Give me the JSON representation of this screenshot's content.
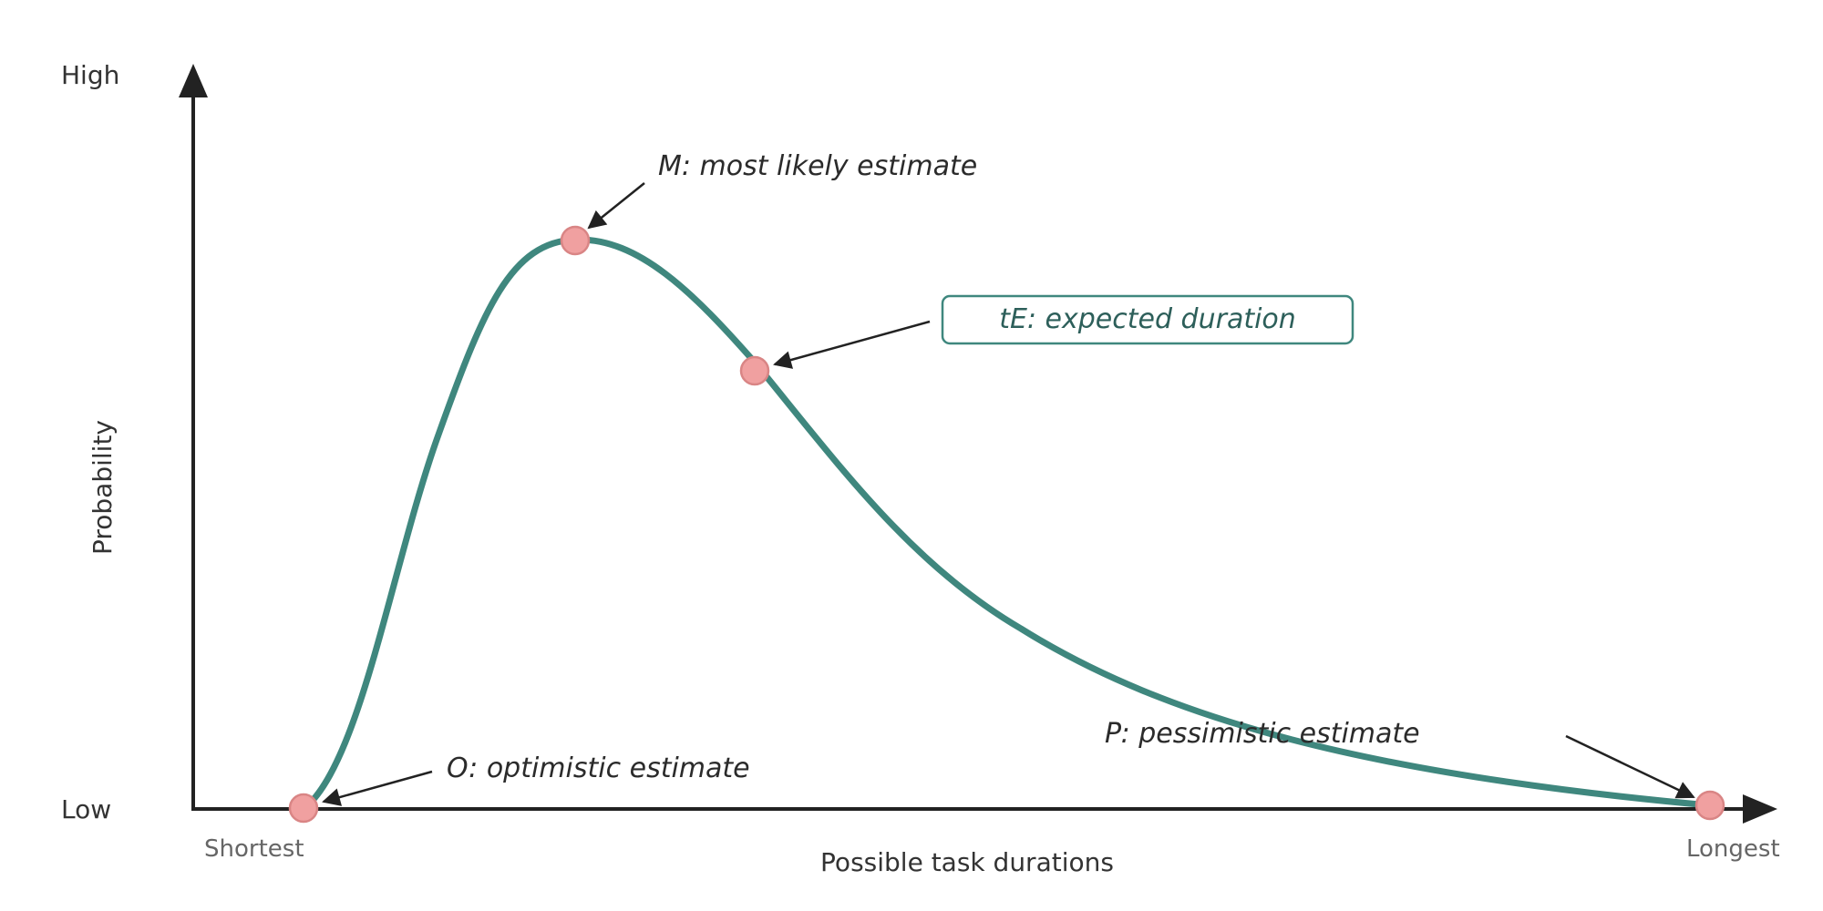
{
  "axes": {
    "y_high": "High",
    "y_low": "Low",
    "y_label": "Probability",
    "x_start": "Shortest",
    "x_end": "Longest",
    "x_label": "Possible task durations"
  },
  "annotations": {
    "most_likely": "M: most likely estimate",
    "expected": "tE: expected duration",
    "pessimistic": "P: pessimistic estimate",
    "optimistic": "O: optimistic estimate"
  },
  "colors": {
    "curve": "#3f877e",
    "marker_fill": "#f0a0a0",
    "marker_stroke": "#d98585",
    "axis": "#222222",
    "box_border": "#3f877e"
  }
}
